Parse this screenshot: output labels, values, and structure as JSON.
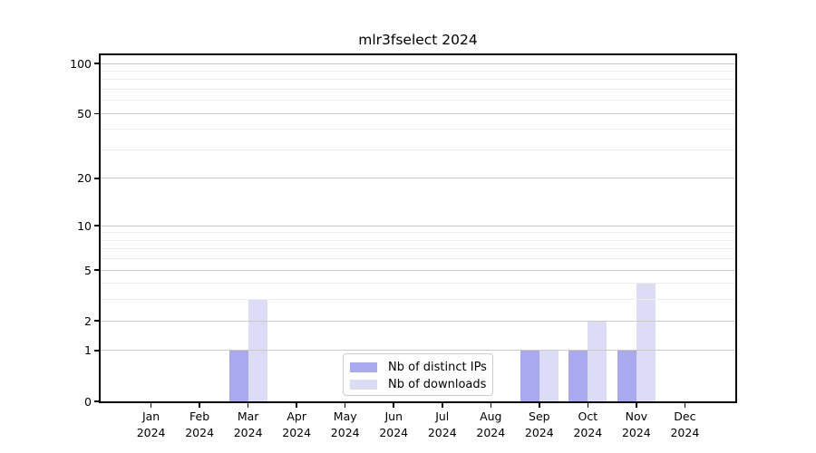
{
  "chart_data": {
    "type": "bar",
    "title": "mlr3fselect 2024",
    "year_label": "2024",
    "categories": [
      "Jan",
      "Feb",
      "Mar",
      "Apr",
      "May",
      "Jun",
      "Jul",
      "Aug",
      "Sep",
      "Oct",
      "Nov",
      "Dec"
    ],
    "series": [
      {
        "name": "Nb of distinct IPs",
        "color": "#a9a9ef",
        "values": [
          0,
          0,
          1,
          0,
          0,
          0,
          0,
          0,
          1,
          1,
          1,
          0
        ]
      },
      {
        "name": "Nb of downloads",
        "color": "#dcdcf7",
        "values": [
          0,
          0,
          3,
          0,
          0,
          0,
          0,
          0,
          1,
          2,
          4,
          0
        ]
      }
    ],
    "yscale": "log1p",
    "ylim": [
      0,
      112
    ],
    "y_major_ticks": [
      0,
      1,
      2,
      5,
      10,
      20,
      50,
      100
    ],
    "y_minor_gridlines": [
      3,
      4,
      6,
      7,
      8,
      9,
      30,
      40,
      60,
      70,
      80,
      90
    ],
    "grid": true,
    "legend_position": "lower-center",
    "colors": {
      "major_grid": "#c9c9c9",
      "minor_grid": "#ededed",
      "axis": "#000000",
      "background": "#ffffff"
    }
  }
}
